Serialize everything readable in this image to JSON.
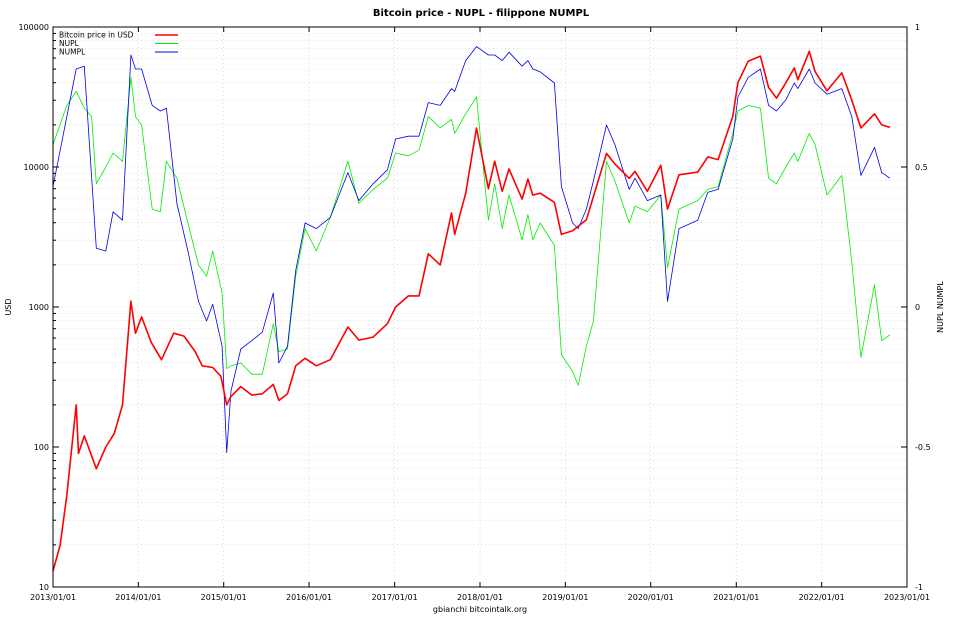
{
  "chart_data": {
    "type": "line",
    "title": "Bitcoin price - NUPL - filippone NUMPL",
    "xlabel": "gbianchi bitcointalk.org",
    "ylabel_left": "USD",
    "ylabel_right": "NUPL NUMPL",
    "x_ticks": [
      "2013/01/01",
      "2014/01/01",
      "2015/01/01",
      "2016/01/01",
      "2017/01/01",
      "2018/01/01",
      "2019/01/01",
      "2020/01/01",
      "2021/01/01",
      "2022/01/01",
      "2023/01/01"
    ],
    "x_range": [
      "2013/01/01",
      "2023/01/01"
    ],
    "y_left": {
      "scale": "log",
      "range": [
        10,
        100000
      ],
      "ticks": [
        "10",
        "100",
        "1000",
        "10000",
        "100000"
      ]
    },
    "y_right": {
      "scale": "linear",
      "range": [
        -1,
        1
      ],
      "ticks": [
        "-1",
        "-0.5",
        "0",
        "0.5",
        "1"
      ]
    },
    "grid": true,
    "legend_position": "top-left",
    "series": [
      {
        "name": "Bitcoin price in USD",
        "axis": "left",
        "color": "#ff0000",
        "points": [
          [
            "2013/01/01",
            13
          ],
          [
            "2013/02/01",
            20
          ],
          [
            "2013/03/01",
            45
          ],
          [
            "2013/04/10",
            200
          ],
          [
            "2013/04/20",
            90
          ],
          [
            "2013/05/15",
            120
          ],
          [
            "2013/07/05",
            70
          ],
          [
            "2013/08/15",
            100
          ],
          [
            "2013/09/20",
            125
          ],
          [
            "2013/10/25",
            200
          ],
          [
            "2013/11/30",
            1100
          ],
          [
            "2013/12/20",
            650
          ],
          [
            "2014/01/15",
            850
          ],
          [
            "2014/02/25",
            560
          ],
          [
            "2014/04/10",
            420
          ],
          [
            "2014/06/01",
            650
          ],
          [
            "2014/07/15",
            620
          ],
          [
            "2014/09/01",
            480
          ],
          [
            "2014/10/01",
            380
          ],
          [
            "2014/11/15",
            370
          ],
          [
            "2014/12/20",
            320
          ],
          [
            "2015/01/14",
            200
          ],
          [
            "2015/02/01",
            230
          ],
          [
            "2015/03/15",
            270
          ],
          [
            "2015/05/01",
            235
          ],
          [
            "2015/06/15",
            240
          ],
          [
            "2015/08/01",
            280
          ],
          [
            "2015/08/25",
            215
          ],
          [
            "2015/10/01",
            240
          ],
          [
            "2015/11/05",
            380
          ],
          [
            "2015/12/15",
            430
          ],
          [
            "2016/02/01",
            380
          ],
          [
            "2016/04/01",
            420
          ],
          [
            "2016/06/15",
            720
          ],
          [
            "2016/08/01",
            580
          ],
          [
            "2016/10/01",
            610
          ],
          [
            "2016/12/01",
            760
          ],
          [
            "2017/01/05",
            1000
          ],
          [
            "2017/03/01",
            1200
          ],
          [
            "2017/04/15",
            1200
          ],
          [
            "2017/05/25",
            2400
          ],
          [
            "2017/07/15",
            2000
          ],
          [
            "2017/09/01",
            4700
          ],
          [
            "2017/09/15",
            3300
          ],
          [
            "2017/11/01",
            6500
          ],
          [
            "2017/12/17",
            19000
          ],
          [
            "2018/02/06",
            7000
          ],
          [
            "2018/03/05",
            11000
          ],
          [
            "2018/04/06",
            6700
          ],
          [
            "2018/05/05",
            9700
          ],
          [
            "2018/06/30",
            5900
          ],
          [
            "2018/07/25",
            8200
          ],
          [
            "2018/08/15",
            6300
          ],
          [
            "2018/09/15",
            6500
          ],
          [
            "2018/11/15",
            5600
          ],
          [
            "2018/12/15",
            3300
          ],
          [
            "2019/02/01",
            3500
          ],
          [
            "2019/04/01",
            4200
          ],
          [
            "2019/06/26",
            12500
          ],
          [
            "2019/08/01",
            10500
          ],
          [
            "2019/10/01",
            8300
          ],
          [
            "2019/10/26",
            9300
          ],
          [
            "2019/12/18",
            6700
          ],
          [
            "2020/02/13",
            10300
          ],
          [
            "2020/03/13",
            5000
          ],
          [
            "2020/05/01",
            8800
          ],
          [
            "2020/07/20",
            9200
          ],
          [
            "2020/09/01",
            11800
          ],
          [
            "2020/10/15",
            11300
          ],
          [
            "2020/12/17",
            23000
          ],
          [
            "2021/01/08",
            40000
          ],
          [
            "2021/02/21",
            57000
          ],
          [
            "2021/04/14",
            62000
          ],
          [
            "2021/05/19",
            37000
          ],
          [
            "2021/06/22",
            31000
          ],
          [
            "2021/08/01",
            40000
          ],
          [
            "2021/09/06",
            51000
          ],
          [
            "2021/09/21",
            42000
          ],
          [
            "2021/11/09",
            67000
          ],
          [
            "2021/12/04",
            48000
          ],
          [
            "2022/01/24",
            35000
          ],
          [
            "2022/03/28",
            47000
          ],
          [
            "2022/05/10",
            30000
          ],
          [
            "2022/06/18",
            19000
          ],
          [
            "2022/08/15",
            24000
          ],
          [
            "2022/09/15",
            20000
          ],
          [
            "2022/10/20",
            19200
          ]
        ]
      },
      {
        "name": "NUPL",
        "axis": "right",
        "color": "#00ee00",
        "points": [
          [
            "2013/01/01",
            0.58
          ],
          [
            "2013/03/01",
            0.72
          ],
          [
            "2013/04/10",
            0.77
          ],
          [
            "2013/05/15",
            0.71
          ],
          [
            "2013/06/15",
            0.68
          ],
          [
            "2013/07/05",
            0.44
          ],
          [
            "2013/08/15",
            0.5
          ],
          [
            "2013/09/15",
            0.55
          ],
          [
            "2013/10/25",
            0.52
          ],
          [
            "2013/11/30",
            0.82
          ],
          [
            "2013/12/20",
            0.68
          ],
          [
            "2014/01/15",
            0.65
          ],
          [
            "2014/03/01",
            0.35
          ],
          [
            "2014/04/05",
            0.34
          ],
          [
            "2014/05/01",
            0.52
          ],
          [
            "2014/06/15",
            0.46
          ],
          [
            "2014/08/01",
            0.3
          ],
          [
            "2014/09/15",
            0.15
          ],
          [
            "2014/10/20",
            0.11
          ],
          [
            "2014/11/15",
            0.2
          ],
          [
            "2014/12/25",
            0.05
          ],
          [
            "2015/01/14",
            -0.22
          ],
          [
            "2015/02/01",
            -0.21
          ],
          [
            "2015/03/15",
            -0.2
          ],
          [
            "2015/05/01",
            -0.24
          ],
          [
            "2015/06/15",
            -0.24
          ],
          [
            "2015/08/01",
            -0.06
          ],
          [
            "2015/08/25",
            -0.16
          ],
          [
            "2015/10/01",
            -0.15
          ],
          [
            "2015/11/05",
            0.11
          ],
          [
            "2015/12/15",
            0.28
          ],
          [
            "2016/02/01",
            0.2
          ],
          [
            "2016/04/01",
            0.32
          ],
          [
            "2016/06/15",
            0.52
          ],
          [
            "2016/08/01",
            0.37
          ],
          [
            "2016/10/01",
            0.42
          ],
          [
            "2016/12/01",
            0.46
          ],
          [
            "2017/01/05",
            0.55
          ],
          [
            "2017/03/01",
            0.54
          ],
          [
            "2017/04/15",
            0.56
          ],
          [
            "2017/05/25",
            0.68
          ],
          [
            "2017/07/15",
            0.64
          ],
          [
            "2017/09/01",
            0.67
          ],
          [
            "2017/09/15",
            0.62
          ],
          [
            "2017/11/01",
            0.69
          ],
          [
            "2017/12/17",
            0.75
          ],
          [
            "2018/02/06",
            0.31
          ],
          [
            "2018/03/05",
            0.44
          ],
          [
            "2018/04/06",
            0.28
          ],
          [
            "2018/05/05",
            0.4
          ],
          [
            "2018/06/30",
            0.24
          ],
          [
            "2018/07/25",
            0.33
          ],
          [
            "2018/08/15",
            0.24
          ],
          [
            "2018/09/15",
            0.3
          ],
          [
            "2018/11/15",
            0.22
          ],
          [
            "2018/12/15",
            -0.17
          ],
          [
            "2019/02/01",
            -0.23
          ],
          [
            "2019/02/25",
            -0.28
          ],
          [
            "2019/04/01",
            -0.14
          ],
          [
            "2019/05/01",
            -0.05
          ],
          [
            "2019/06/26",
            0.52
          ],
          [
            "2019/08/01",
            0.45
          ],
          [
            "2019/10/01",
            0.3
          ],
          [
            "2019/10/26",
            0.36
          ],
          [
            "2019/12/18",
            0.34
          ],
          [
            "2020/02/13",
            0.4
          ],
          [
            "2020/03/13",
            0.14
          ],
          [
            "2020/05/01",
            0.35
          ],
          [
            "2020/07/20",
            0.38
          ],
          [
            "2020/09/01",
            0.42
          ],
          [
            "2020/10/15",
            0.43
          ],
          [
            "2020/12/17",
            0.62
          ],
          [
            "2021/01/08",
            0.7
          ],
          [
            "2021/02/21",
            0.72
          ],
          [
            "2021/04/14",
            0.71
          ],
          [
            "2021/05/19",
            0.46
          ],
          [
            "2021/06/22",
            0.44
          ],
          [
            "2021/08/01",
            0.5
          ],
          [
            "2021/09/06",
            0.55
          ],
          [
            "2021/09/21",
            0.52
          ],
          [
            "2021/11/09",
            0.62
          ],
          [
            "2021/12/04",
            0.58
          ],
          [
            "2022/01/24",
            0.4
          ],
          [
            "2022/03/28",
            0.47
          ],
          [
            "2022/05/10",
            0.16
          ],
          [
            "2022/06/18",
            -0.18
          ],
          [
            "2022/08/15",
            0.08
          ],
          [
            "2022/09/15",
            -0.12
          ],
          [
            "2022/10/20",
            -0.1
          ]
        ]
      },
      {
        "name": "NUMPL",
        "axis": "right",
        "color": "#0000ee",
        "points": [
          [
            "2013/01/01",
            0.43
          ],
          [
            "2013/04/10",
            0.85
          ],
          [
            "2013/05/15",
            0.86
          ],
          [
            "2013/07/05",
            0.21
          ],
          [
            "2013/08/15",
            0.2
          ],
          [
            "2013/09/15",
            0.34
          ],
          [
            "2013/10/25",
            0.31
          ],
          [
            "2013/11/30",
            0.9
          ],
          [
            "2013/12/20",
            0.85
          ],
          [
            "2014/01/15",
            0.85
          ],
          [
            "2014/03/01",
            0.72
          ],
          [
            "2014/04/05",
            0.7
          ],
          [
            "2014/05/01",
            0.71
          ],
          [
            "2014/06/15",
            0.37
          ],
          [
            "2014/08/01",
            0.2
          ],
          [
            "2014/09/15",
            0.02
          ],
          [
            "2014/10/20",
            -0.05
          ],
          [
            "2014/11/15",
            0.01
          ],
          [
            "2014/12/25",
            -0.14
          ],
          [
            "2015/01/14",
            -0.52
          ],
          [
            "2015/02/01",
            -0.3
          ],
          [
            "2015/03/15",
            -0.15
          ],
          [
            "2015/05/01",
            -0.12
          ],
          [
            "2015/06/15",
            -0.09
          ],
          [
            "2015/08/01",
            0.05
          ],
          [
            "2015/08/25",
            -0.2
          ],
          [
            "2015/10/01",
            -0.14
          ],
          [
            "2015/11/05",
            0.13
          ],
          [
            "2015/12/15",
            0.3
          ],
          [
            "2016/02/01",
            0.28
          ],
          [
            "2016/04/01",
            0.32
          ],
          [
            "2016/06/15",
            0.48
          ],
          [
            "2016/08/01",
            0.38
          ],
          [
            "2016/10/01",
            0.44
          ],
          [
            "2016/12/01",
            0.49
          ],
          [
            "2017/01/05",
            0.6
          ],
          [
            "2017/03/01",
            0.61
          ],
          [
            "2017/04/15",
            0.61
          ],
          [
            "2017/05/25",
            0.73
          ],
          [
            "2017/07/15",
            0.72
          ],
          [
            "2017/09/01",
            0.78
          ],
          [
            "2017/09/15",
            0.77
          ],
          [
            "2017/11/01",
            0.88
          ],
          [
            "2017/12/17",
            0.93
          ],
          [
            "2018/02/06",
            0.9
          ],
          [
            "2018/03/05",
            0.9
          ],
          [
            "2018/04/06",
            0.88
          ],
          [
            "2018/05/05",
            0.91
          ],
          [
            "2018/06/30",
            0.86
          ],
          [
            "2018/07/25",
            0.88
          ],
          [
            "2018/08/15",
            0.85
          ],
          [
            "2018/09/15",
            0.84
          ],
          [
            "2018/11/15",
            0.8
          ],
          [
            "2018/12/15",
            0.43
          ],
          [
            "2019/02/01",
            0.3
          ],
          [
            "2019/02/25",
            0.28
          ],
          [
            "2019/04/01",
            0.35
          ],
          [
            "2019/05/01",
            0.45
          ],
          [
            "2019/06/26",
            0.65
          ],
          [
            "2019/08/01",
            0.58
          ],
          [
            "2019/10/01",
            0.42
          ],
          [
            "2019/10/26",
            0.46
          ],
          [
            "2019/12/18",
            0.38
          ],
          [
            "2020/02/13",
            0.4
          ],
          [
            "2020/03/13",
            0.02
          ],
          [
            "2020/05/01",
            0.28
          ],
          [
            "2020/07/20",
            0.31
          ],
          [
            "2020/09/01",
            0.41
          ],
          [
            "2020/10/15",
            0.42
          ],
          [
            "2020/12/17",
            0.6
          ],
          [
            "2021/01/08",
            0.75
          ],
          [
            "2021/02/21",
            0.82
          ],
          [
            "2021/04/14",
            0.85
          ],
          [
            "2021/05/19",
            0.72
          ],
          [
            "2021/06/22",
            0.7
          ],
          [
            "2021/08/01",
            0.74
          ],
          [
            "2021/09/06",
            0.8
          ],
          [
            "2021/09/21",
            0.78
          ],
          [
            "2021/11/09",
            0.85
          ],
          [
            "2021/12/04",
            0.8
          ],
          [
            "2022/01/24",
            0.76
          ],
          [
            "2022/03/28",
            0.78
          ],
          [
            "2022/05/10",
            0.68
          ],
          [
            "2022/06/18",
            0.47
          ],
          [
            "2022/08/15",
            0.57
          ],
          [
            "2022/09/15",
            0.48
          ],
          [
            "2022/10/20",
            0.46
          ]
        ]
      }
    ]
  }
}
